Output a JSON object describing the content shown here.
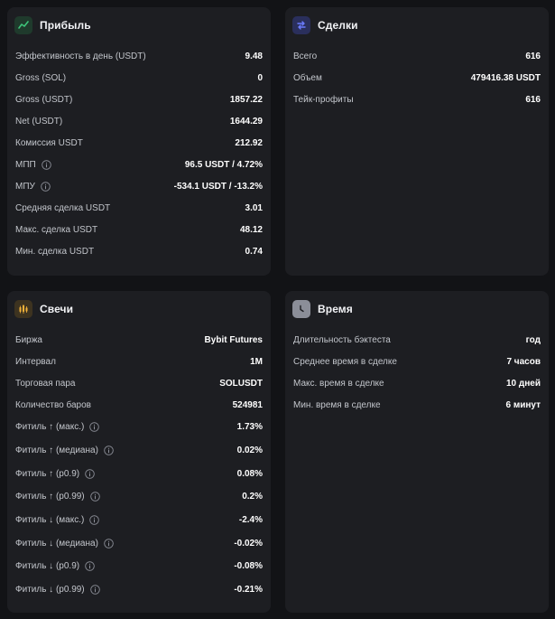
{
  "profit": {
    "title": "Прибыль",
    "icon": "trending-up-icon",
    "rows": [
      {
        "label": "Эффективность в день (USDT)",
        "value": "9.48"
      },
      {
        "label": "Gross (SOL)",
        "value": "0"
      },
      {
        "label": "Gross (USDT)",
        "value": "1857.22"
      },
      {
        "label": "Net (USDT)",
        "value": "1644.29"
      },
      {
        "label": "Комиссия USDT",
        "value": "212.92"
      },
      {
        "label": "МПП",
        "value": "96.5 USDT / 4.72%"
      },
      {
        "label": "МПУ",
        "value": "-534.1 USDT / -13.2%"
      },
      {
        "label": "Средняя сделка USDT",
        "value": "3.01"
      },
      {
        "label": "Макс. сделка USDT",
        "value": "48.12"
      },
      {
        "label": "Мин. сделка USDT",
        "value": "0.74"
      }
    ]
  },
  "deals": {
    "title": "Сделки",
    "icon": "swap-arrows-icon",
    "rows": [
      {
        "label": "Всего",
        "value": "616"
      },
      {
        "label": "Объем",
        "value": "479416.38 USDT"
      },
      {
        "label": "Тейк-профиты",
        "value": "616"
      }
    ]
  },
  "candles": {
    "title": "Свечи",
    "icon": "candlestick-icon",
    "rows": [
      {
        "label": "Биржа",
        "value": "Bybit Futures"
      },
      {
        "label": "Интервал",
        "value": "1M"
      },
      {
        "label": "Торговая пара",
        "value": "SOLUSDT"
      },
      {
        "label": "Количество баров",
        "value": "524981"
      },
      {
        "label": "Фитиль ↑ (макс.)",
        "value": "1.73%"
      },
      {
        "label": "Фитиль ↑ (медиана)",
        "value": "0.02%"
      },
      {
        "label": "Фитиль ↑ (p0.9)",
        "value": "0.08%"
      },
      {
        "label": "Фитиль ↑ (p0.99)",
        "value": "0.2%"
      },
      {
        "label": "Фитиль ↓ (макс.)",
        "value": "-2.4%"
      },
      {
        "label": "Фитиль ↓ (медиана)",
        "value": "-0.02%"
      },
      {
        "label": "Фитиль ↓ (p0.9)",
        "value": "-0.08%"
      },
      {
        "label": "Фитиль ↓ (p0.99)",
        "value": "-0.21%"
      }
    ]
  },
  "time": {
    "title": "Время",
    "icon": "clock-icon",
    "rows": [
      {
        "label": "Длительность бэктеста",
        "value": "год"
      },
      {
        "label": "Среднее время в сделке",
        "value": "7 часов"
      },
      {
        "label": "Макс. время в сделке",
        "value": "10 дней"
      },
      {
        "label": "Мин. время в сделке",
        "value": "6 минут"
      }
    ]
  },
  "colors": {
    "background": "#121316",
    "card": "#1d1e22",
    "profit_accent": "#3ec47a",
    "deals_accent": "#6b7bff",
    "candles_accent": "#f3b23a",
    "time_accent": "#8b8e98"
  }
}
